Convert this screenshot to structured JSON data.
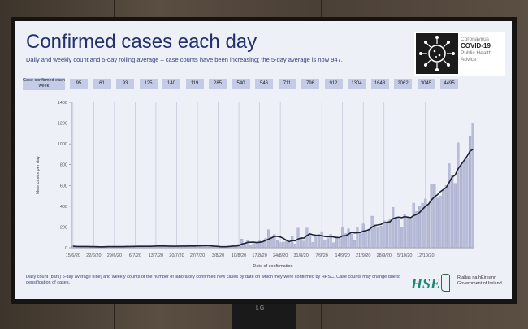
{
  "slide": {
    "title": "Confirmed cases each day",
    "subtitle": "Daily and weekly count and 5-day rolling average – case counts have been increasing; the 5-day average is now 947.",
    "footnote": "Daily count (bars) 5-day average (line) and weekly counts of the number of laboratory confirmed new cases by date on which they were confirmed by HPSC. Case counts may change due to densification of cases.",
    "covid_box": {
      "line1": "Coronavirus",
      "line2": "COVID-19",
      "line3": "Public Health",
      "line4": "Advice"
    },
    "hse_logo": "HSE",
    "gov_line1": "Rialtas na hÉireann",
    "gov_line2": "Government of Ireland",
    "tv_brand": "LG",
    "weekly_label": "Case confirmed each week",
    "weekly_counts": [
      "95",
      "61",
      "93",
      "125",
      "140",
      "119",
      "285",
      "540",
      "546",
      "711",
      "796",
      "912",
      "1304",
      "1648",
      "2062",
      "3045",
      "4495"
    ]
  },
  "chart_data": {
    "type": "bar",
    "ylabel": "New cases per day",
    "xlabel": "Date of confirmation",
    "ylim": [
      0,
      1400
    ],
    "yticks": [
      0,
      200,
      400,
      600,
      800,
      1000,
      1200,
      1400
    ],
    "xtick_labels": [
      "15/6/20",
      "22/6/20",
      "29/6/20",
      "6/7/20",
      "13/7/20",
      "20/7/20",
      "27/7/20",
      "3/8/20",
      "10/8/20",
      "17/8/20",
      "24/8/20",
      "31/8/20",
      "7/9/20",
      "14/9/20",
      "21/9/20",
      "28/9/20",
      "5/10/20",
      "12/10/20"
    ],
    "series": [
      {
        "name": "Daily count",
        "values": [
          18,
          10,
          12,
          15,
          12,
          14,
          8,
          9,
          10,
          8,
          9,
          11,
          14,
          13,
          8,
          10,
          7,
          15,
          18,
          9,
          14,
          13,
          17,
          10,
          15,
          18,
          12,
          14,
          25,
          23,
          15,
          9,
          12,
          17,
          17,
          16,
          18,
          11,
          19,
          20,
          20,
          12,
          23,
          18,
          26,
          28,
          8,
          8,
          13,
          11,
          7,
          11,
          13,
          19,
          26,
          11,
          38,
          85,
          45,
          69,
          27,
          40,
          58,
          66,
          60,
          90,
          174,
          102,
          129,
          74,
          49,
          55,
          66,
          49,
          108,
          37,
          190,
          92,
          65,
          190,
          131,
          52,
          112,
          131,
          156,
          77,
          89,
          130,
          48,
          113,
          90,
          200,
          136,
          183,
          132,
          70,
          200,
          145,
          230,
          150,
          180,
          305,
          220,
          200,
          210,
          260,
          250,
          280,
          390,
          290,
          270,
          200,
          320,
          300,
          280,
          430,
          350,
          400,
          430,
          470,
          420,
          610,
          610,
          480,
          500,
          560,
          600,
          810,
          700,
          620,
          1010,
          800,
          820,
          860,
          1070,
          1200
        ]
      },
      {
        "name": "5-day average",
        "values": [
          15,
          13,
          12,
          12,
          12,
          12,
          11,
          11,
          10,
          9,
          9,
          10,
          11,
          11,
          11,
          11,
          11,
          11,
          12,
          12,
          13,
          13,
          14,
          14,
          14,
          14,
          14,
          15,
          16,
          17,
          17,
          17,
          16,
          15,
          15,
          15,
          16,
          16,
          16,
          17,
          17,
          17,
          18,
          19,
          20,
          21,
          19,
          17,
          15,
          13,
          10,
          10,
          11,
          13,
          16,
          17,
          21,
          36,
          43,
          52,
          53,
          54,
          50,
          53,
          58,
          70,
          82,
          95,
          110,
          110,
          104,
          91,
          73,
          59,
          70,
          68,
          84,
          94,
          93,
          118,
          134,
          125,
          121,
          120,
          117,
          109,
          106,
          108,
          104,
          98,
          99,
          114,
          116,
          130,
          148,
          143,
          145,
          148,
          160,
          165,
          175,
          200,
          215,
          220,
          225,
          240,
          245,
          250,
          280,
          290,
          295,
          290,
          300,
          295,
          290,
          310,
          320,
          340,
          370,
          400,
          420,
          460,
          490,
          510,
          540,
          560,
          580,
          630,
          680,
          700,
          760,
          800,
          840,
          880,
          930,
          947
        ]
      }
    ],
    "grid": "vertical"
  }
}
